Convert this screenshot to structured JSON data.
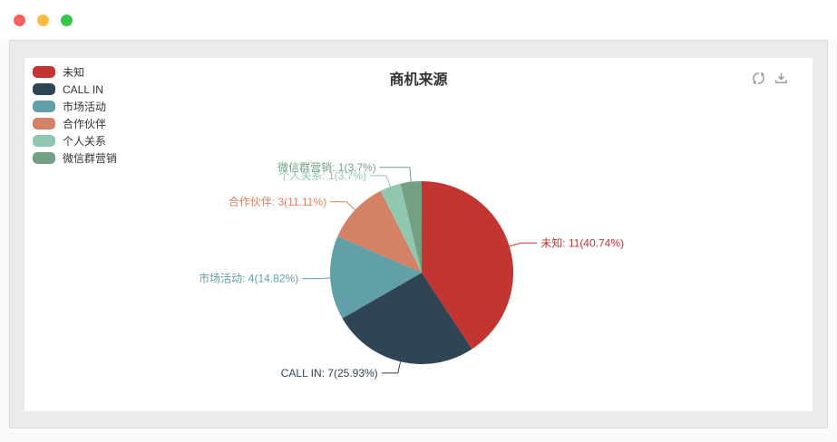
{
  "window": {
    "traffic_lights": [
      {
        "name": "close",
        "color": "#fb615c"
      },
      {
        "name": "minimize",
        "color": "#fdbc40"
      },
      {
        "name": "maximize",
        "color": "#34c749"
      }
    ]
  },
  "toolbar": {
    "icons": [
      {
        "name": "refresh-icon"
      },
      {
        "name": "download-icon"
      }
    ]
  },
  "chart_data": {
    "type": "pie",
    "title": "商机来源",
    "legend_position": "top-left",
    "start_angle_deg": 90,
    "clockwise": true,
    "label_format": "{name}: {value}({percent})",
    "total": 27,
    "legend": [
      "未知",
      "CALL IN",
      "市场活动",
      "合作伙伴",
      "个人关系",
      "微信群营销"
    ],
    "slices": [
      {
        "name": "未知",
        "value": 11,
        "percent": "40.74%",
        "color": "#c23531"
      },
      {
        "name": "CALL IN",
        "value": 7,
        "percent": "25.93%",
        "color": "#2f4554"
      },
      {
        "name": "市场活动",
        "value": 4,
        "percent": "14.82%",
        "color": "#61a0a8"
      },
      {
        "name": "合作伙伴",
        "value": 3,
        "percent": "11.11%",
        "color": "#d48265"
      },
      {
        "name": "个人关系",
        "value": 1,
        "percent": "3.7%",
        "color": "#91c7ae"
      },
      {
        "name": "微信群营销",
        "value": 1,
        "percent": "3.7%",
        "color": "#749f83"
      }
    ]
  }
}
